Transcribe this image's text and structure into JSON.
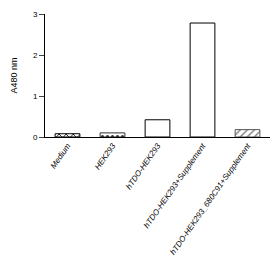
{
  "chart_data": {
    "type": "bar",
    "ylabel": "A480 nm",
    "categories": [
      "Medium",
      "HEK293",
      "hTDO-HEK293",
      "hTDO-HEK293+Supplement",
      "hTDO-HEK293_680C91+Supplement"
    ],
    "values": [
      0.08,
      0.1,
      0.42,
      2.78,
      0.18
    ],
    "colors": [
      "#000000",
      "#333333",
      "#ffffff",
      "#ffffff",
      "#888888"
    ],
    "ylim": [
      0,
      3
    ],
    "yticks": [
      0,
      1,
      2,
      3
    ],
    "grid": false
  }
}
